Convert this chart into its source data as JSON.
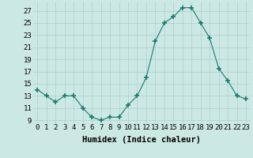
{
  "x": [
    0,
    1,
    2,
    3,
    4,
    5,
    6,
    7,
    8,
    9,
    10,
    11,
    12,
    13,
    14,
    15,
    16,
    17,
    18,
    19,
    20,
    21,
    22,
    23
  ],
  "y": [
    14.0,
    13.0,
    12.0,
    13.0,
    13.0,
    11.0,
    9.5,
    9.0,
    9.5,
    9.5,
    11.5,
    13.0,
    16.0,
    22.0,
    25.0,
    26.0,
    27.5,
    27.5,
    25.0,
    22.5,
    17.5,
    15.5,
    13.0,
    12.5
  ],
  "line_color": "#1a7a6e",
  "marker": "+",
  "marker_size": 4,
  "bg_color": "#cce8e4",
  "grid_color": "#b0d4d0",
  "xlabel": "Humidex (Indice chaleur)",
  "xlabel_fontsize": 7.5,
  "ylabel_ticks": [
    9,
    11,
    13,
    15,
    17,
    19,
    21,
    23,
    25,
    27
  ],
  "xlim": [
    -0.5,
    23.5
  ],
  "ylim": [
    8.5,
    28.5
  ],
  "tick_fontsize": 6.5
}
